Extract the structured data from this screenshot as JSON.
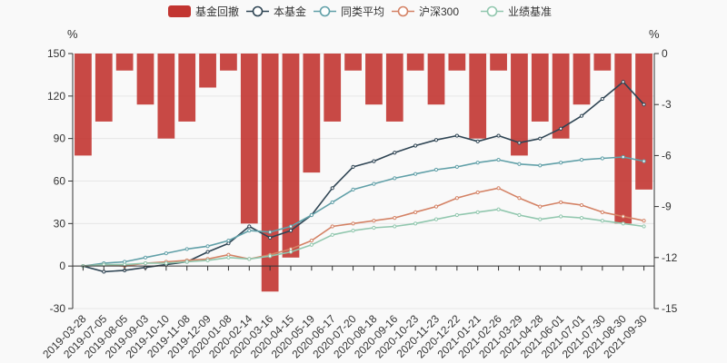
{
  "chart_data": {
    "type": "line+bar",
    "legend": [
      {
        "name": "基金回撤",
        "kind": "bar",
        "color": "#c23531"
      },
      {
        "name": "本基金",
        "kind": "line",
        "color": "#2f4554"
      },
      {
        "name": "同类平均",
        "kind": "line",
        "color": "#61a0a8"
      },
      {
        "name": "沪深300",
        "kind": "line",
        "color": "#d48265"
      },
      {
        "name": "业绩基准",
        "kind": "line",
        "color": "#91c7ae"
      }
    ],
    "left_axis": {
      "unit": "%",
      "min": -30,
      "max": 150,
      "ticks": [
        150,
        120,
        90,
        60,
        30,
        0,
        -30
      ]
    },
    "right_axis": {
      "unit": "%",
      "min": -15,
      "max": 0,
      "ticks": [
        0,
        -3,
        -6,
        -9,
        -12,
        -15
      ]
    },
    "x_labels": [
      "2019-03-28",
      "2019-07-05",
      "2019-08-05",
      "2019-09-03",
      "2019-10-10",
      "2019-11-08",
      "2019-12-09",
      "2020-01-08",
      "2020-02-14",
      "2020-03-16",
      "2020-04-15",
      "2020-05-19",
      "2020-06-17",
      "2020-07-20",
      "2020-08-18",
      "2020-09-16",
      "2020-10-23",
      "2020-11-23",
      "2020-12-22",
      "2021-01-21",
      "2021-02-26",
      "2021-03-29",
      "2021-04-28",
      "2021-06-01",
      "2021-07-01",
      "2021-07-30",
      "2021-08-30",
      "2021-09-30"
    ],
    "series": [
      {
        "name": "本基金",
        "values": [
          0,
          -4,
          -3,
          -1,
          1,
          3,
          10,
          16,
          28,
          20,
          25,
          36,
          55,
          70,
          74,
          80,
          85,
          89,
          92,
          88,
          92,
          87,
          90,
          97,
          106,
          118,
          130,
          114
        ]
      },
      {
        "name": "同类平均",
        "values": [
          0,
          2,
          3,
          6,
          9,
          12,
          14,
          18,
          25,
          24,
          28,
          36,
          45,
          54,
          58,
          62,
          65,
          68,
          70,
          73,
          75,
          72,
          71,
          73,
          75,
          76,
          77,
          74
        ]
      },
      {
        "name": "沪深300",
        "values": [
          0,
          1,
          0,
          2,
          3,
          4,
          5,
          8,
          5,
          8,
          12,
          18,
          28,
          30,
          32,
          34,
          38,
          42,
          48,
          52,
          55,
          48,
          42,
          45,
          43,
          38,
          35,
          32
        ]
      },
      {
        "name": "业绩基准",
        "values": [
          0,
          1,
          1,
          2,
          2,
          3,
          4,
          6,
          5,
          7,
          10,
          15,
          22,
          25,
          27,
          28,
          30,
          33,
          36,
          38,
          40,
          36,
          33,
          35,
          34,
          32,
          30,
          28
        ]
      },
      {
        "name": "基金回撤",
        "values": [
          -6,
          -4,
          -1,
          -3,
          -5,
          -4,
          -2,
          -1,
          -10,
          -14,
          -12,
          -7,
          -4,
          -1,
          -3,
          -4,
          -1,
          -3,
          -1,
          -5,
          -1,
          -6,
          -4,
          -5,
          -3,
          -1,
          -10,
          -8
        ]
      }
    ]
  }
}
